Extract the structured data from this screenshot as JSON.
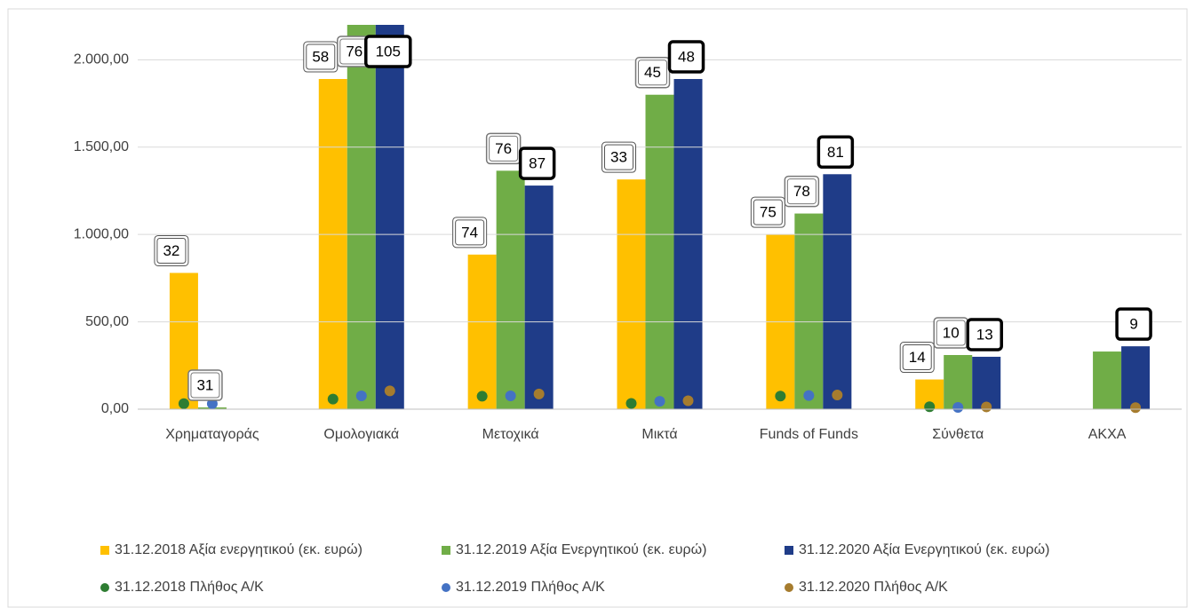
{
  "chart_data": {
    "type": "bar",
    "categories": [
      "Χρηματαγοράς",
      "Ομολογιακά",
      "Μετοχικά",
      "Μικτά",
      "Funds of Funds",
      "Σύνθετα",
      "ΑΚΧΑ"
    ],
    "series": [
      {
        "name": "31.12.2018 Αξία ενεργητικού (εκ. ευρώ)",
        "color": "#ffc000",
        "kind": "bar",
        "values": [
          780,
          1890,
          885,
          1315,
          1000,
          170,
          null
        ]
      },
      {
        "name": "31.12.2019 Αξία Ενεργητικού (εκ. ευρώ)",
        "color": "#70ad47",
        "kind": "bar",
        "values": [
          10,
          2300,
          1365,
          1800,
          1120,
          310,
          330
        ]
      },
      {
        "name": "31.12.2020 Αξία Ενεργητικού (εκ. ευρώ)",
        "color": "#1f3c88",
        "kind": "bar",
        "values": [
          null,
          2300,
          1280,
          1890,
          1345,
          300,
          360
        ]
      },
      {
        "name": "31.12.2018 Πλήθος Α/Κ",
        "color": "#2e7d32",
        "kind": "dot",
        "values": [
          32,
          58,
          74,
          33,
          75,
          14,
          null
        ]
      },
      {
        "name": "31.12.2019 Πλήθος Α/Κ",
        "color": "#4472c4",
        "kind": "dot",
        "values": [
          31,
          76,
          76,
          45,
          78,
          10,
          null
        ]
      },
      {
        "name": "31.12.2020 Πλήθος Α/Κ",
        "color": "#a67c2e",
        "kind": "dot",
        "values": [
          null,
          105,
          87,
          48,
          81,
          13,
          9
        ]
      }
    ],
    "ylim": [
      0,
      2200
    ],
    "yticks": [
      {
        "value": 0,
        "label": "0,00"
      },
      {
        "value": 500,
        "label": "500,00"
      },
      {
        "value": 1000,
        "label": "1.000,00"
      },
      {
        "value": 1500,
        "label": "1.500,00"
      },
      {
        "value": 2000,
        "label": "2.000,00"
      }
    ],
    "grid": true
  }
}
